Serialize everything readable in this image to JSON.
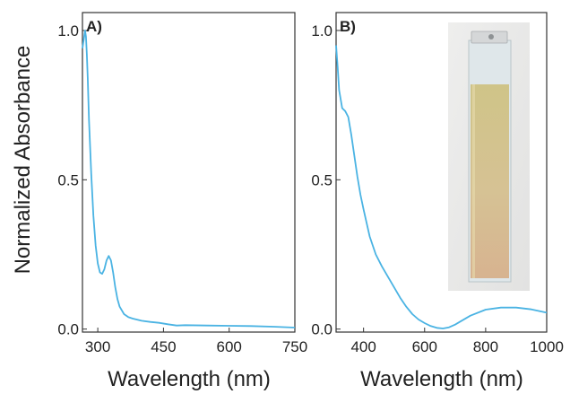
{
  "figure": {
    "ylabel": "Normalized Absorbance"
  },
  "chart_data": [
    {
      "type": "line",
      "panel_label": "A)",
      "xlabel": "Wavelength (nm)",
      "ylabel": "Normalized Absorbance",
      "xlim": [
        265,
        750
      ],
      "ylim": [
        -0.01,
        1.06
      ],
      "xticks": [
        300,
        450,
        600,
        750
      ],
      "xtick_labels": [
        "300",
        "450",
        "600",
        "750"
      ],
      "yticks": [
        0.0,
        0.5,
        1.0
      ],
      "ytick_labels": [
        "0.0",
        "0.5",
        "1.0"
      ],
      "grid": false,
      "series": [
        {
          "color": "#4ab3e3",
          "x": [
            265,
            268,
            271,
            273,
            275,
            277,
            280,
            285,
            290,
            295,
            300,
            305,
            310,
            315,
            320,
            325,
            330,
            335,
            340,
            345,
            350,
            360,
            370,
            380,
            400,
            420,
            440,
            460,
            480,
            500,
            550,
            600,
            650,
            700,
            750
          ],
          "y": [
            0.94,
            0.97,
            1.0,
            0.98,
            0.92,
            0.84,
            0.7,
            0.52,
            0.38,
            0.28,
            0.22,
            0.19,
            0.185,
            0.2,
            0.23,
            0.245,
            0.23,
            0.19,
            0.14,
            0.1,
            0.075,
            0.05,
            0.04,
            0.035,
            0.028,
            0.024,
            0.021,
            0.016,
            0.012,
            0.013,
            0.012,
            0.011,
            0.01,
            0.008,
            0.005
          ]
        }
      ]
    },
    {
      "type": "line",
      "panel_label": "B)",
      "xlabel": "Wavelength (nm)",
      "xlim": [
        310,
        1000
      ],
      "ylim": [
        -0.01,
        1.06
      ],
      "xticks": [
        400,
        600,
        800,
        1000
      ],
      "xtick_labels": [
        "400",
        "600",
        "800",
        "1000"
      ],
      "yticks": [
        0.0,
        0.5,
        1.0
      ],
      "ytick_labels": [
        "0.0",
        "0.5",
        "1.0"
      ],
      "grid": false,
      "inset": "photo of cuvette",
      "series": [
        {
          "color": "#4ab3e3",
          "x": [
            310,
            315,
            320,
            330,
            340,
            350,
            360,
            370,
            380,
            390,
            400,
            420,
            440,
            460,
            480,
            500,
            520,
            540,
            560,
            580,
            600,
            620,
            640,
            660,
            680,
            700,
            720,
            750,
            800,
            850,
            900,
            950,
            1000
          ],
          "y": [
            0.95,
            0.88,
            0.8,
            0.74,
            0.73,
            0.71,
            0.65,
            0.58,
            0.51,
            0.45,
            0.4,
            0.31,
            0.25,
            0.21,
            0.175,
            0.14,
            0.105,
            0.075,
            0.05,
            0.032,
            0.02,
            0.01,
            0.004,
            0.002,
            0.006,
            0.015,
            0.027,
            0.045,
            0.065,
            0.072,
            0.072,
            0.066,
            0.055
          ]
        }
      ]
    }
  ]
}
